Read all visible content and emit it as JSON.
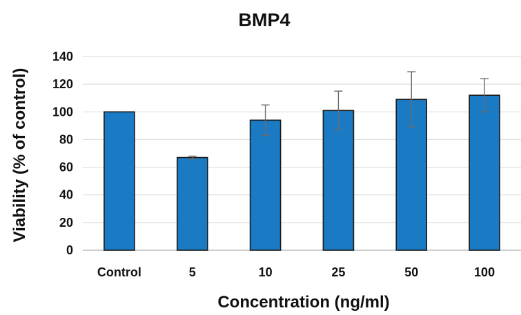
{
  "chart_data": {
    "type": "bar",
    "title": "BMP4",
    "xlabel": "Concentration (ng/ml)",
    "ylabel": "Viability (% of control)",
    "categories": [
      "Control",
      "5",
      "10",
      "25",
      "50",
      "100"
    ],
    "values": [
      100,
      67,
      94,
      101,
      109,
      112
    ],
    "error": [
      0,
      1,
      11,
      14,
      20,
      12
    ],
    "ylim": [
      0,
      140
    ],
    "yticks": [
      0,
      20,
      40,
      60,
      80,
      100,
      120,
      140
    ],
    "grid": true,
    "legend": "none",
    "bar_color": "#1a7bc4"
  }
}
